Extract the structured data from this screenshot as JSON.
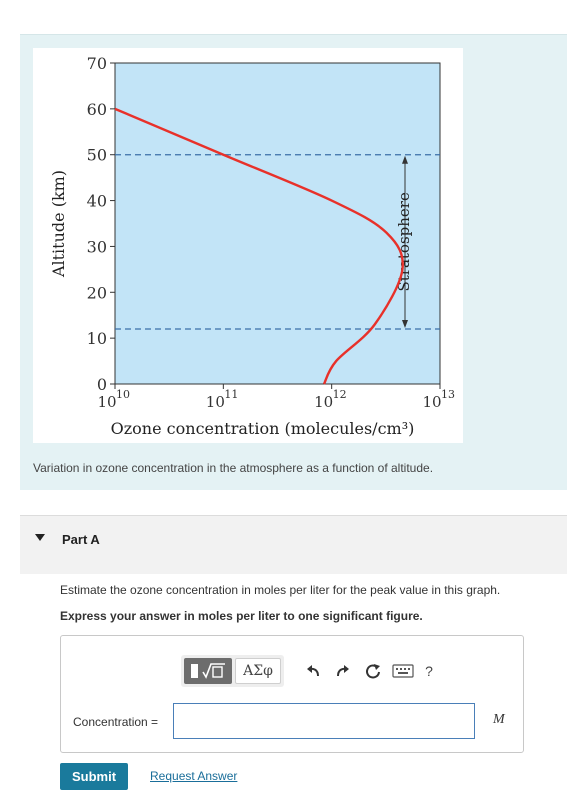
{
  "figure": {
    "caption": "Variation in ozone concentration in the atmosphere as a function of altitude."
  },
  "chart_data": {
    "type": "line",
    "xlabel": "Ozone concentration (molecules/cm³)",
    "ylabel": "Altitude (km)",
    "x_scale": "log",
    "xlim": [
      10000000000.0,
      10000000000000.0
    ],
    "ylim": [
      0,
      70
    ],
    "x_ticks": [
      "10",
      "10",
      "10",
      "10"
    ],
    "x_tick_exponents": [
      "10",
      "11",
      "12",
      "13"
    ],
    "y_ticks": [
      "0",
      "10",
      "20",
      "30",
      "40",
      "50",
      "60",
      "70"
    ],
    "y_tick_values": [
      0,
      10,
      20,
      30,
      40,
      50,
      60,
      70
    ],
    "series": [
      {
        "color": "#e8312a",
        "points": [
          {
            "x": 10000000000.0,
            "y": 60
          },
          {
            "x": 100000000000.0,
            "y": 50
          },
          {
            "x": 1000000000000.0,
            "y": 40
          },
          {
            "x": 3200000000000.0,
            "y": 33
          },
          {
            "x": 4500000000000.0,
            "y": 25
          },
          {
            "x": 2500000000000.0,
            "y": 13
          },
          {
            "x": 1100000000000.0,
            "y": 5
          },
          {
            "x": 850000000000.0,
            "y": 0
          }
        ]
      }
    ],
    "reference_lines": [
      {
        "y": 50
      },
      {
        "y": 12
      }
    ],
    "annotation": "Stratosphere",
    "colors": {
      "plot_bg": "#c2e4f7",
      "line": "#e8312a",
      "dashed": "#3b6fa8"
    }
  },
  "part": {
    "title": "Part A",
    "question": "Estimate the ozone concentration in moles per liter for the peak value in this graph.",
    "instruction": "Express your answer in moles per liter to one significant figure."
  },
  "answer": {
    "label": "Concentration =",
    "value": "",
    "unit": "M",
    "toolbar": {
      "greek_label": "ΑΣφ",
      "help_label": "?",
      "icons": [
        "templates-icon",
        "undo-icon",
        "redo-icon",
        "reset-icon",
        "keyboard-icon",
        "help-icon"
      ]
    }
  },
  "actions": {
    "submit_label": "Submit",
    "request_label": "Request Answer"
  }
}
